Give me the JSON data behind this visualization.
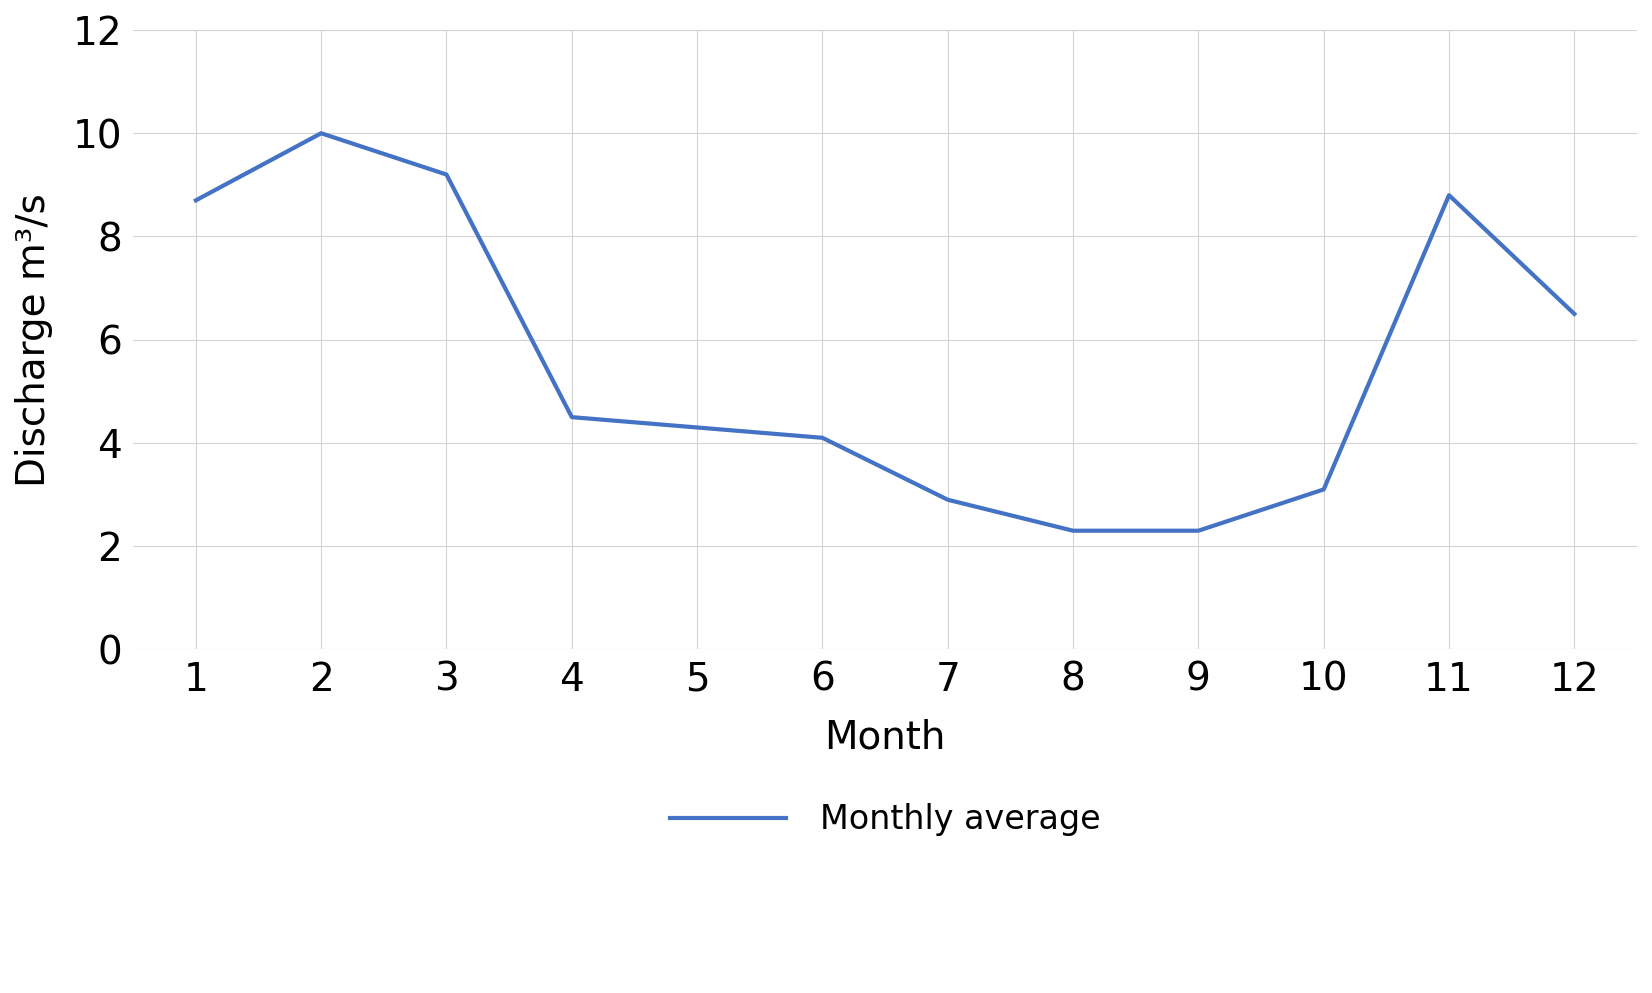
{
  "months": [
    1,
    2,
    3,
    4,
    5,
    6,
    7,
    8,
    9,
    10,
    11,
    12
  ],
  "discharge": [
    8.7,
    10.0,
    9.2,
    4.5,
    4.3,
    4.1,
    2.9,
    2.3,
    2.3,
    3.1,
    8.8,
    6.5
  ],
  "line_color": "#4472C4",
  "line_width": 3.0,
  "xlabel": "Month",
  "ylabel": "Discharge m³/s",
  "ylim": [
    0,
    12
  ],
  "xlim": [
    0.5,
    12.5
  ],
  "yticks": [
    0,
    2,
    4,
    6,
    8,
    10,
    12
  ],
  "xticks": [
    1,
    2,
    3,
    4,
    5,
    6,
    7,
    8,
    9,
    10,
    11,
    12
  ],
  "legend_label": "Monthly average",
  "grid_color": "#d3d3d3",
  "background_color": "#ffffff",
  "xlabel_fontsize": 28,
  "ylabel_fontsize": 28,
  "tick_fontsize": 28,
  "legend_fontsize": 24
}
